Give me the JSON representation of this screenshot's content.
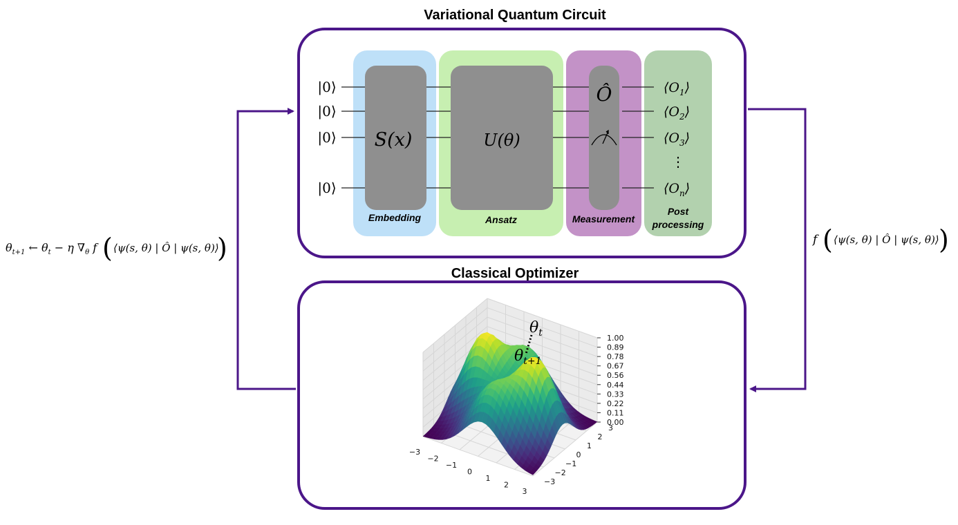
{
  "diagram": {
    "title_top": "Variational Quantum Circuit",
    "title_bottom": "Classical Optimizer",
    "colors": {
      "frame": "#4B1689",
      "embedding": "#BEE0F8",
      "ansatz": "#C7EFB1",
      "measurement": "#C392C7",
      "post": "#B2D1AE",
      "gate": "#8F8F8F"
    },
    "qubits": [
      "|0⟩",
      "|0⟩",
      "|0⟩",
      "|0⟩"
    ],
    "embedding": {
      "label": "Embedding",
      "gate": "S(x)"
    },
    "ansatz": {
      "label": "Ansatz",
      "gate": "U(θ)"
    },
    "measurement": {
      "label": "Measurement",
      "observable": "Ô"
    },
    "post_processing": {
      "label_line1": "Post",
      "label_line2": "processing",
      "outputs": [
        "⟨O",
        "⟨O",
        "⟨O",
        "⟨O"
      ],
      "subscripts": [
        "1",
        "2",
        "3",
        "n"
      ],
      "ellipsis": "⋮"
    },
    "left_formula": {
      "lhs_theta": "θ",
      "lhs_sub": "t+1",
      "arrow": " ← ",
      "theta": "θ",
      "theta_sub": "t",
      "minus_eta": " − η ∇",
      "grad_sub": "θ",
      "f": " f ",
      "bracket": "⟨ψ(s, θ) | Ô | ψ(s, θ)⟩"
    },
    "right_formula": {
      "f": "f ",
      "bracket": "⟨ψ(s, θ) | Ô | ψ(s, θ)⟩"
    },
    "surface": {
      "theta_t": "θ",
      "theta_t_sub": "t",
      "theta_t1": "θ",
      "theta_t1_sub": "t+1"
    }
  },
  "chart_data": {
    "type": "surface",
    "title": "",
    "x_ticks": [
      "−3",
      "−2",
      "−1",
      "0",
      "1",
      "2",
      "3"
    ],
    "y_ticks": [
      "−3",
      "−2",
      "−1",
      "0",
      "1",
      "2",
      "3"
    ],
    "z_ticks": [
      "0.00",
      "0.11",
      "0.22",
      "0.33",
      "0.44",
      "0.56",
      "0.67",
      "0.78",
      "0.89",
      "1.00"
    ],
    "xlim": [
      -3,
      3
    ],
    "ylim": [
      -3,
      3
    ],
    "zlim": [
      0,
      1
    ],
    "colormap": "viridis",
    "grid": true
  }
}
